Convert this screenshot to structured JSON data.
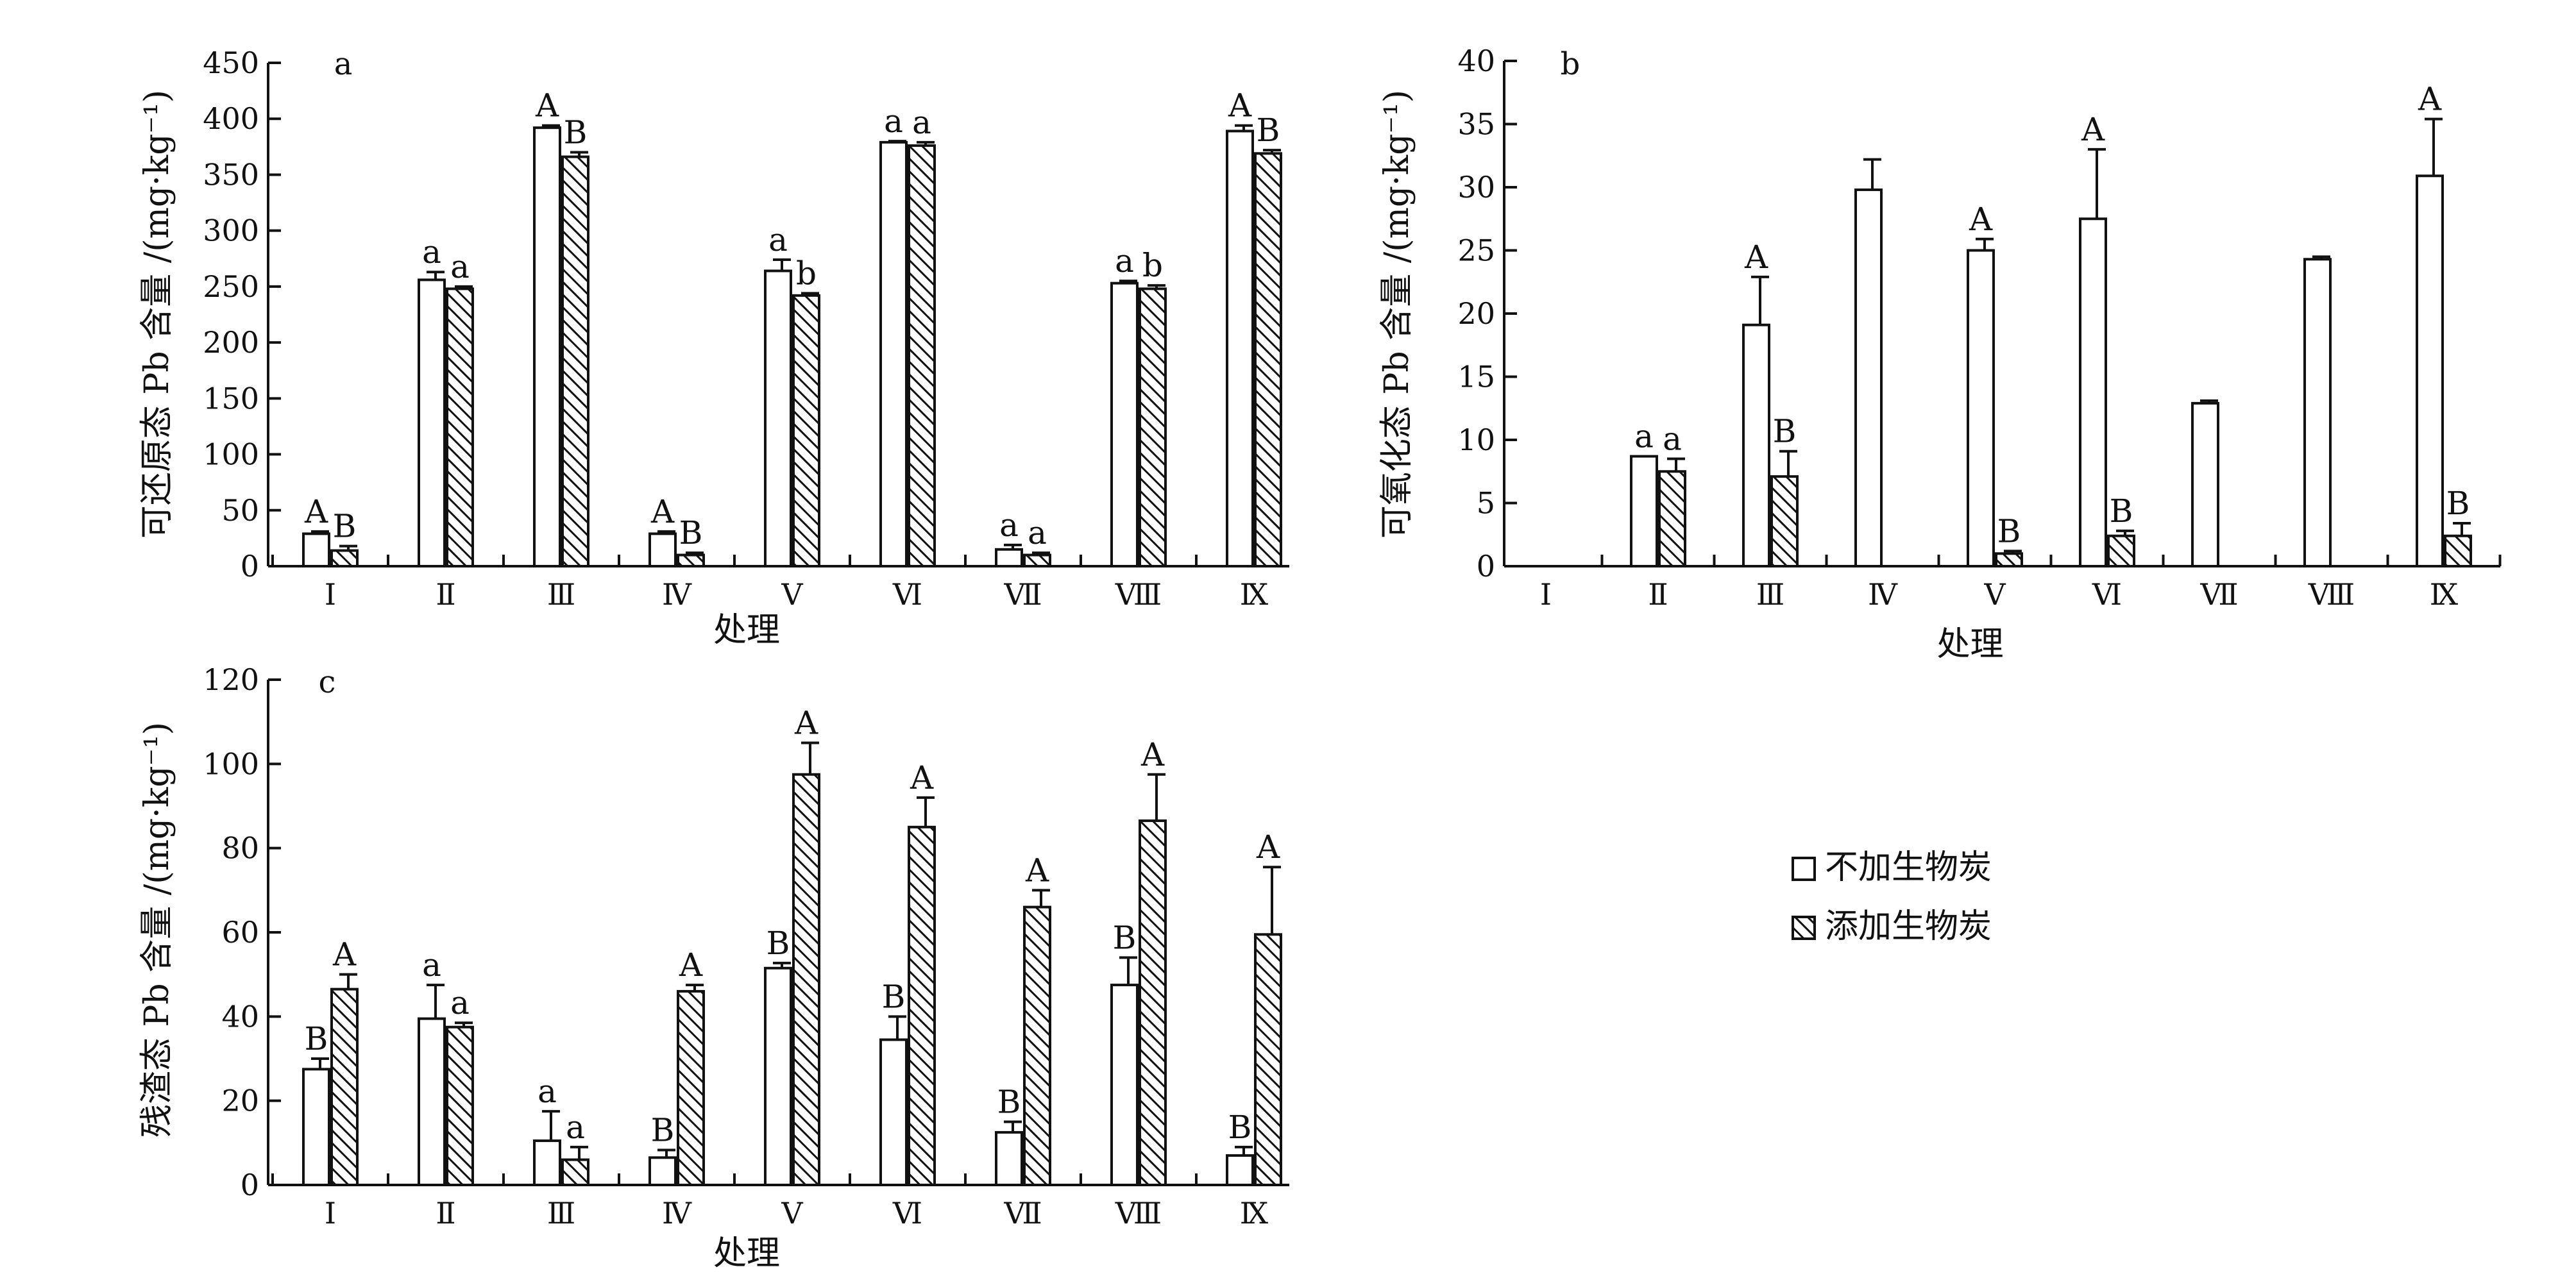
{
  "legend": {
    "items": [
      {
        "name": "不加生物炭",
        "style": "plain"
      },
      {
        "name": "添加生物炭",
        "style": "hatched"
      }
    ]
  },
  "chart_data": [
    {
      "id": "a",
      "type": "bar",
      "panel_label": "a",
      "xlabel": "处理",
      "ylabel": "可还原态 Pb 含量 /(mg·kg⁻¹)",
      "ylim": [
        0,
        450
      ],
      "yticks": [
        0,
        50,
        100,
        150,
        200,
        250,
        300,
        350,
        400,
        450
      ],
      "categories": [
        "Ⅰ",
        "Ⅱ",
        "Ⅲ",
        "Ⅳ",
        "Ⅴ",
        "Ⅵ",
        "Ⅶ",
        "Ⅷ",
        "Ⅸ"
      ],
      "series": [
        {
          "name": "不加生物炭",
          "values": [
            29,
            256,
            392,
            29,
            264,
            379,
            15,
            253,
            389
          ],
          "errors": [
            2,
            7,
            2,
            2,
            10,
            1,
            4,
            2,
            5
          ],
          "labels": [
            "A",
            "a",
            "A",
            "A",
            "a",
            "a",
            "a",
            "a",
            "A"
          ]
        },
        {
          "name": "添加生物炭",
          "values": [
            14,
            248,
            366,
            10,
            242,
            376,
            10,
            248,
            369
          ],
          "errors": [
            4,
            2,
            4,
            2,
            2,
            3,
            2,
            3,
            3
          ],
          "labels": [
            "B",
            "a",
            "B",
            "B",
            "b",
            "a",
            "a",
            "b",
            "B"
          ]
        }
      ]
    },
    {
      "id": "b",
      "type": "bar",
      "panel_label": "b",
      "xlabel": "处理",
      "ylabel": "可氧化态 Pb 含量 /(mg·kg⁻¹)",
      "ylim": [
        0,
        40
      ],
      "yticks": [
        0,
        5,
        10,
        15,
        20,
        25,
        30,
        35,
        40
      ],
      "categories": [
        "Ⅰ",
        "Ⅱ",
        "Ⅲ",
        "Ⅳ",
        "Ⅴ",
        "Ⅵ",
        "Ⅶ",
        "Ⅷ",
        "Ⅸ"
      ],
      "series": [
        {
          "name": "不加生物炭",
          "values": [
            0,
            8.7,
            19.1,
            29.8,
            25.0,
            27.5,
            12.9,
            24.3,
            30.9
          ],
          "errors": [
            0,
            0,
            3.8,
            2.4,
            0.9,
            5.5,
            0.2,
            0.2,
            4.5
          ],
          "labels": [
            "",
            "a",
            "A",
            "",
            "A",
            "A",
            "",
            "",
            "A"
          ]
        },
        {
          "name": "添加生物炭",
          "values": [
            0,
            7.5,
            7.1,
            0,
            1.0,
            2.4,
            0,
            0,
            2.4
          ],
          "errors": [
            0,
            1.0,
            2.0,
            0,
            0.2,
            0.4,
            0,
            0,
            1.0
          ],
          "labels": [
            "",
            "a",
            "B",
            "",
            "B",
            "B",
            "",
            "",
            "B"
          ]
        }
      ]
    },
    {
      "id": "c",
      "type": "bar",
      "panel_label": "c",
      "xlabel": "处理",
      "ylabel": "残渣态 Pb 含量 /(mg·kg⁻¹)",
      "ylim": [
        0,
        120
      ],
      "yticks": [
        0,
        20,
        40,
        60,
        80,
        100,
        120
      ],
      "categories": [
        "Ⅰ",
        "Ⅱ",
        "Ⅲ",
        "Ⅳ",
        "Ⅴ",
        "Ⅵ",
        "Ⅶ",
        "Ⅷ",
        "Ⅸ"
      ],
      "series": [
        {
          "name": "不加生物炭",
          "values": [
            27.5,
            39.5,
            10.5,
            6.5,
            51.5,
            34.5,
            12.5,
            47.5,
            7.0
          ],
          "errors": [
            2.5,
            8.0,
            7.0,
            1.8,
            1.2,
            5.5,
            2.5,
            6.5,
            2.0
          ],
          "labels": [
            "B",
            "a",
            "a",
            "B",
            "B",
            "B",
            "B",
            "B",
            "B"
          ]
        },
        {
          "name": "添加生物炭",
          "values": [
            46.5,
            37.5,
            6.0,
            46.0,
            97.5,
            85.0,
            66.0,
            86.5,
            59.5
          ],
          "errors": [
            3.5,
            1.0,
            3.0,
            1.5,
            7.5,
            7.0,
            4.0,
            11.0,
            16.0
          ],
          "labels": [
            "A",
            "a",
            "a",
            "A",
            "A",
            "A",
            "A",
            "A",
            "A"
          ]
        }
      ]
    }
  ]
}
